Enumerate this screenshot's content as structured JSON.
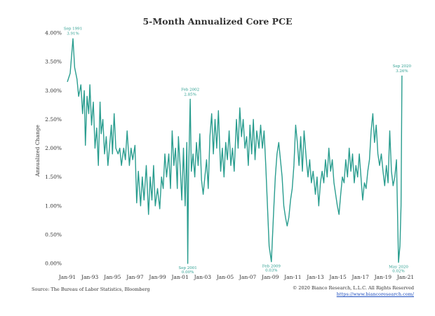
{
  "chart_data": {
    "type": "line",
    "title": "5-Month Annualized Core PCE",
    "ylabel": "Annualized Change",
    "xlabel": "",
    "ylim": [
      0,
      4.0
    ],
    "y_ticks": [
      "0.00%",
      "0.50%",
      "1.00%",
      "1.50%",
      "2.00%",
      "2.50%",
      "3.00%",
      "3.50%",
      "4.00%"
    ],
    "x_ticks": [
      "Jan-91",
      "Jan-93",
      "Jan-95",
      "Jan-97",
      "Jan-99",
      "Jan-01",
      "Jan-03",
      "Jan-05",
      "Jan-07",
      "Jan-09",
      "Jan-11",
      "Jan-13",
      "Jan-15",
      "Jan-17",
      "Jan-19",
      "Jan-21"
    ],
    "line_color": "#2a9d8f",
    "series": [
      {
        "name": "5-Month Annualized Core PCE",
        "points": [
          [
            1991.0,
            3.15
          ],
          [
            1991.25,
            3.3
          ],
          [
            1991.5,
            3.9
          ],
          [
            1991.65,
            3.4
          ],
          [
            1991.85,
            3.2
          ],
          [
            1992.0,
            2.9
          ],
          [
            1992.2,
            3.1
          ],
          [
            1992.35,
            2.6
          ],
          [
            1992.5,
            3.0
          ],
          [
            1992.6,
            2.05
          ],
          [
            1992.75,
            2.9
          ],
          [
            1992.9,
            2.6
          ],
          [
            1993.0,
            3.1
          ],
          [
            1993.15,
            2.4
          ],
          [
            1993.3,
            2.8
          ],
          [
            1993.45,
            2.0
          ],
          [
            1993.6,
            2.35
          ],
          [
            1993.75,
            1.7
          ],
          [
            1993.9,
            2.8
          ],
          [
            1994.0,
            2.25
          ],
          [
            1994.15,
            2.5
          ],
          [
            1994.3,
            1.9
          ],
          [
            1994.45,
            2.2
          ],
          [
            1994.6,
            1.7
          ],
          [
            1994.75,
            2.05
          ],
          [
            1994.9,
            2.4
          ],
          [
            1995.0,
            1.9
          ],
          [
            1995.15,
            2.6
          ],
          [
            1995.3,
            2.0
          ],
          [
            1995.5,
            1.9
          ],
          [
            1995.65,
            2.0
          ],
          [
            1995.8,
            1.7
          ],
          [
            1996.0,
            2.0
          ],
          [
            1996.15,
            1.8
          ],
          [
            1996.3,
            2.3
          ],
          [
            1996.5,
            1.7
          ],
          [
            1996.65,
            2.0
          ],
          [
            1996.8,
            1.8
          ],
          [
            1997.0,
            2.05
          ],
          [
            1997.15,
            1.05
          ],
          [
            1997.3,
            1.6
          ],
          [
            1997.5,
            1.0
          ],
          [
            1997.65,
            1.5
          ],
          [
            1997.8,
            1.1
          ],
          [
            1998.0,
            1.7
          ],
          [
            1998.2,
            0.85
          ],
          [
            1998.35,
            1.5
          ],
          [
            1998.5,
            1.1
          ],
          [
            1998.65,
            1.7
          ],
          [
            1998.8,
            1.0
          ],
          [
            1999.0,
            1.3
          ],
          [
            1999.2,
            0.95
          ],
          [
            1999.35,
            1.5
          ],
          [
            1999.5,
            1.3
          ],
          [
            1999.65,
            1.9
          ],
          [
            1999.8,
            1.5
          ],
          [
            2000.0,
            1.9
          ],
          [
            2000.15,
            1.3
          ],
          [
            2000.3,
            2.3
          ],
          [
            2000.45,
            1.7
          ],
          [
            2000.6,
            2.0
          ],
          [
            2000.75,
            1.3
          ],
          [
            2000.85,
            2.2
          ],
          [
            2001.0,
            1.7
          ],
          [
            2001.15,
            1.1
          ],
          [
            2001.3,
            2.0
          ],
          [
            2001.45,
            1.0
          ],
          [
            2001.6,
            2.1
          ],
          [
            2001.68,
            0.0
          ],
          [
            2001.75,
            1.5
          ],
          [
            2001.9,
            2.85
          ],
          [
            2002.0,
            1.6
          ],
          [
            2002.15,
            1.9
          ],
          [
            2002.3,
            1.5
          ],
          [
            2002.45,
            2.1
          ],
          [
            2002.6,
            1.7
          ],
          [
            2002.75,
            2.25
          ],
          [
            2002.9,
            1.45
          ],
          [
            2003.05,
            1.2
          ],
          [
            2003.2,
            1.5
          ],
          [
            2003.35,
            1.8
          ],
          [
            2003.5,
            1.3
          ],
          [
            2003.65,
            2.2
          ],
          [
            2003.8,
            2.6
          ],
          [
            2003.95,
            1.9
          ],
          [
            2004.1,
            2.5
          ],
          [
            2004.25,
            2.0
          ],
          [
            2004.4,
            2.65
          ],
          [
            2004.6,
            1.6
          ],
          [
            2004.75,
            2.0
          ],
          [
            2004.9,
            1.5
          ],
          [
            2005.05,
            2.1
          ],
          [
            2005.2,
            1.8
          ],
          [
            2005.35,
            2.3
          ],
          [
            2005.5,
            1.7
          ],
          [
            2005.65,
            2.0
          ],
          [
            2005.8,
            1.6
          ],
          [
            2006.0,
            2.5
          ],
          [
            2006.15,
            2.0
          ],
          [
            2006.3,
            2.7
          ],
          [
            2006.45,
            2.2
          ],
          [
            2006.6,
            2.5
          ],
          [
            2006.75,
            2.0
          ],
          [
            2006.9,
            2.2
          ],
          [
            2007.05,
            1.7
          ],
          [
            2007.2,
            2.4
          ],
          [
            2007.35,
            1.9
          ],
          [
            2007.5,
            2.5
          ],
          [
            2007.65,
            1.8
          ],
          [
            2007.8,
            2.3
          ],
          [
            2008.0,
            2.0
          ],
          [
            2008.15,
            2.4
          ],
          [
            2008.3,
            2.0
          ],
          [
            2008.45,
            2.3
          ],
          [
            2008.6,
            1.7
          ],
          [
            2008.75,
            1.0
          ],
          [
            2008.9,
            0.3
          ],
          [
            2009.1,
            0.03
          ],
          [
            2009.3,
            0.9
          ],
          [
            2009.45,
            1.5
          ],
          [
            2009.6,
            1.9
          ],
          [
            2009.75,
            2.1
          ],
          [
            2009.9,
            1.8
          ],
          [
            2010.05,
            1.5
          ],
          [
            2010.2,
            1.0
          ],
          [
            2010.35,
            0.8
          ],
          [
            2010.5,
            0.65
          ],
          [
            2010.65,
            0.8
          ],
          [
            2010.8,
            1.1
          ],
          [
            2010.95,
            1.3
          ],
          [
            2011.1,
            1.7
          ],
          [
            2011.25,
            2.4
          ],
          [
            2011.4,
            2.1
          ],
          [
            2011.55,
            1.7
          ],
          [
            2011.7,
            2.2
          ],
          [
            2011.85,
            1.6
          ],
          [
            2012.0,
            2.3
          ],
          [
            2012.2,
            1.8
          ],
          [
            2012.35,
            1.5
          ],
          [
            2012.5,
            1.8
          ],
          [
            2012.65,
            1.4
          ],
          [
            2012.8,
            1.6
          ],
          [
            2013.0,
            1.2
          ],
          [
            2013.15,
            1.5
          ],
          [
            2013.3,
            1.0
          ],
          [
            2013.45,
            1.4
          ],
          [
            2013.6,
            1.6
          ],
          [
            2013.75,
            1.4
          ],
          [
            2013.9,
            1.8
          ],
          [
            2014.05,
            1.5
          ],
          [
            2014.2,
            2.0
          ],
          [
            2014.35,
            1.6
          ],
          [
            2014.5,
            1.8
          ],
          [
            2014.65,
            1.4
          ],
          [
            2014.8,
            1.2
          ],
          [
            2014.95,
            1.0
          ],
          [
            2015.1,
            0.85
          ],
          [
            2015.25,
            1.2
          ],
          [
            2015.4,
            1.5
          ],
          [
            2015.55,
            1.4
          ],
          [
            2015.7,
            1.8
          ],
          [
            2015.85,
            1.5
          ],
          [
            2016.0,
            2.0
          ],
          [
            2016.15,
            1.6
          ],
          [
            2016.3,
            1.9
          ],
          [
            2016.45,
            1.4
          ],
          [
            2016.6,
            1.7
          ],
          [
            2016.75,
            1.5
          ],
          [
            2016.9,
            1.9
          ],
          [
            2017.05,
            1.5
          ],
          [
            2017.2,
            1.1
          ],
          [
            2017.35,
            1.4
          ],
          [
            2017.5,
            1.3
          ],
          [
            2017.65,
            1.6
          ],
          [
            2017.8,
            1.8
          ],
          [
            2017.95,
            2.3
          ],
          [
            2018.1,
            2.6
          ],
          [
            2018.25,
            2.1
          ],
          [
            2018.4,
            2.4
          ],
          [
            2018.55,
            1.9
          ],
          [
            2018.7,
            1.7
          ],
          [
            2018.85,
            1.9
          ],
          [
            2019.0,
            1.6
          ],
          [
            2019.15,
            1.35
          ],
          [
            2019.3,
            1.7
          ],
          [
            2019.45,
            1.4
          ],
          [
            2019.6,
            2.3
          ],
          [
            2019.75,
            1.6
          ],
          [
            2019.9,
            1.35
          ],
          [
            2020.05,
            1.5
          ],
          [
            2020.2,
            1.8
          ],
          [
            2020.38,
            0.02
          ],
          [
            2020.5,
            0.3
          ],
          [
            2020.6,
            1.0
          ],
          [
            2020.68,
            3.26
          ]
        ]
      }
    ],
    "annotations": [
      {
        "label": "Sep 1991",
        "value_text": "3.91%",
        "x": 1991.5,
        "y": 3.91,
        "position": "above"
      },
      {
        "label": "Feb 2002",
        "value_text": "2.85%",
        "x": 2001.9,
        "y": 2.85,
        "position": "above"
      },
      {
        "label": "Sep 2001",
        "value_text": "0.00%",
        "x": 2001.68,
        "y": 0.0,
        "position": "below"
      },
      {
        "label": "Feb 2009",
        "value_text": "0.03%",
        "x": 2009.1,
        "y": 0.03,
        "position": "below"
      },
      {
        "label": "May 2020",
        "value_text": "0.02%",
        "x": 2020.38,
        "y": 0.02,
        "position": "below"
      },
      {
        "label": "Sep 2020",
        "value_text": "3.26%",
        "x": 2020.68,
        "y": 3.26,
        "position": "above"
      }
    ]
  },
  "footer": {
    "source": "Source: The Bureau of Labor Statistics, Bloomberg",
    "copyright": "© 2020 Bianco Research, L.L.C. All Rights Reserved",
    "website": "https://www.biancoresearch.com/"
  }
}
